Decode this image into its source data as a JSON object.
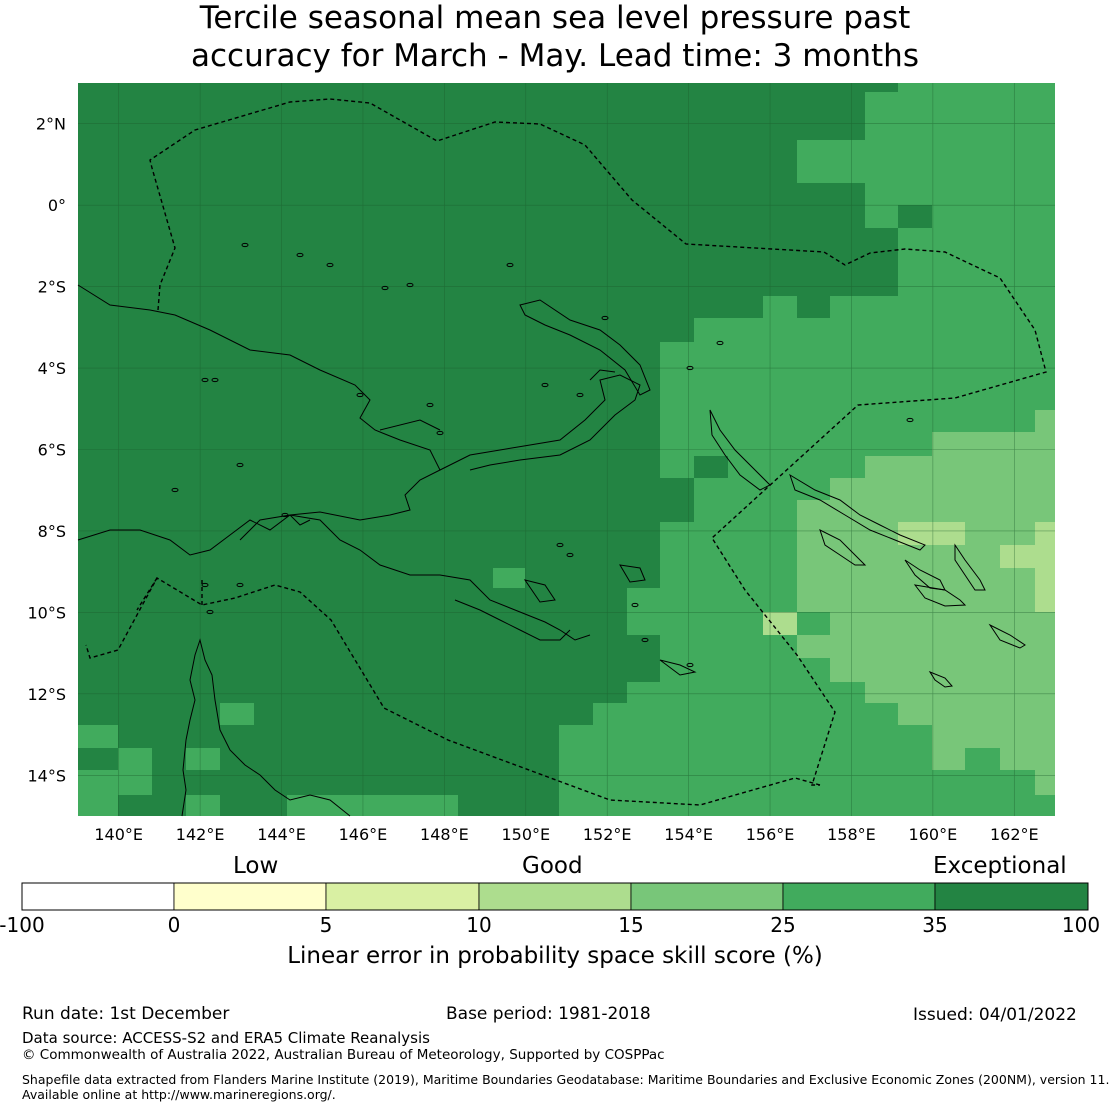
{
  "title_line1": "Tercile seasonal mean sea level pressure past",
  "title_line2": "accuracy for March - May. Lead time: 3 months",
  "map": {
    "lat_ticks": [
      "2°N",
      "0°",
      "2°S",
      "4°S",
      "6°S",
      "8°S",
      "10°S",
      "12°S",
      "14°S"
    ],
    "lon_ticks": [
      "140°E",
      "142°E",
      "144°E",
      "146°E",
      "148°E",
      "150°E",
      "152°E",
      "154°E",
      "156°E",
      "158°E",
      "160°E",
      "162°E"
    ],
    "lon_range": [
      139,
      163
    ],
    "lat_range": [
      -15,
      3
    ],
    "colors": {
      "exceptional": "#238443",
      "c25_35": "#41ab5d",
      "c15_25": "#78c679",
      "c10_15": "#addd8e",
      "c5_10": "#d9f0a3",
      "c0_5": "#ffffcc"
    }
  },
  "colorbar": {
    "categories": [
      "Low",
      "Good",
      "Exceptional"
    ],
    "ticks": [
      "-100",
      "0",
      "5",
      "10",
      "15",
      "25",
      "35",
      "100"
    ],
    "colors": [
      "#ffffff",
      "#ffffcc",
      "#d9f0a3",
      "#addd8e",
      "#78c679",
      "#41ab5d",
      "#238443"
    ],
    "label": "Linear error in probability space skill score (%)"
  },
  "footer": {
    "run_date": "Run date: 1st December",
    "base_period": "Base period: 1981-2018",
    "issued": "Issued: 04/01/2022",
    "data_source": "Data source: ACCESS-S2 and ERA5 Climate Reanalysis",
    "copyright": "© Commonwealth of Australia 2022, Australian Bureau of Meteorology, Supported by COSPPac",
    "shapefile_line1": "Shapefile data extracted from Flanders Marine Institute (2019), Maritime Boundaries Geodatabase: Maritime Boundaries and Exclusive Economic Zones (200NM), version 11.",
    "shapefile_line2": "Available online at http://www.marineregions.org/."
  }
}
